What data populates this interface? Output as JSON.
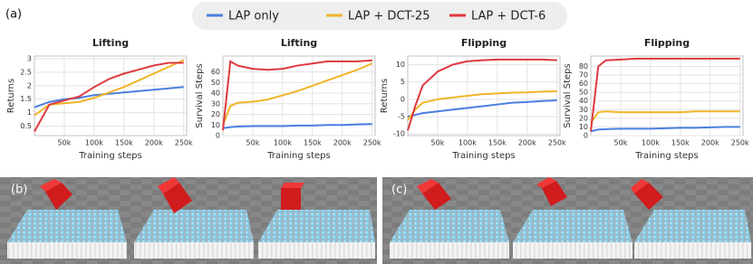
{
  "panel_labels": [
    "(a)",
    "(b)",
    "(c)"
  ],
  "legend": [
    {
      "name": "LAP only",
      "color": "#4a7fe0"
    },
    {
      "name": "LAP + DCT-25",
      "color": "#f0b429"
    },
    {
      "name": "LAP + DCT-6",
      "color": "#e0383e"
    }
  ],
  "chart_data": [
    {
      "type": "line",
      "title": "Lifting",
      "x_label": "Training steps",
      "y_label": "Returns",
      "x": [
        0,
        12500,
        25000,
        50000,
        75000,
        100000,
        125000,
        150000,
        175000,
        200000,
        225000,
        250000
      ],
      "series": [
        {
          "color": "#4a7fe0",
          "values": [
            1.2,
            1.3,
            1.4,
            1.5,
            1.55,
            1.65,
            1.7,
            1.75,
            1.8,
            1.85,
            1.9,
            1.95
          ]
        },
        {
          "color": "#f0b429",
          "values": [
            0.9,
            1.1,
            1.3,
            1.35,
            1.4,
            1.55,
            1.75,
            1.95,
            2.2,
            2.45,
            2.7,
            2.95
          ]
        },
        {
          "color": "#e0383e",
          "values": [
            0.3,
            0.8,
            1.3,
            1.45,
            1.6,
            1.95,
            2.25,
            2.45,
            2.6,
            2.75,
            2.85,
            2.85
          ]
        }
      ],
      "xlim": [
        0,
        255000
      ],
      "ylim": [
        0.15,
        3.1
      ],
      "xticks": [
        {
          "value": 50000,
          "label": "50k"
        },
        {
          "value": 100000,
          "label": "100k"
        },
        {
          "value": 150000,
          "label": "150k"
        },
        {
          "value": 200000,
          "label": "200k"
        },
        {
          "value": 250000,
          "label": "250k"
        }
      ],
      "yticks": [
        0.5,
        1,
        1.5,
        2,
        2.5,
        3
      ],
      "grid": true
    },
    {
      "type": "line",
      "title": "Lifting",
      "x_label": "Training steps",
      "y_label": "Survival Steps",
      "x": [
        0,
        12500,
        25000,
        50000,
        75000,
        100000,
        125000,
        150000,
        175000,
        200000,
        225000,
        250000
      ],
      "series": [
        {
          "color": "#4a7fe0",
          "values": [
            7,
            8,
            8.5,
            9,
            9,
            9,
            9.5,
            9.5,
            10,
            10,
            10.5,
            11
          ]
        },
        {
          "color": "#f0b429",
          "values": [
            10,
            28,
            31,
            32,
            34,
            38,
            42,
            47,
            52,
            57,
            62,
            68
          ]
        },
        {
          "color": "#e0383e",
          "values": [
            5,
            70,
            66,
            63,
            62,
            63,
            66,
            68,
            70,
            70,
            70,
            71
          ]
        }
      ],
      "xlim": [
        0,
        255000
      ],
      "ylim": [
        0,
        75
      ],
      "xticks": [
        {
          "value": 50000,
          "label": "50k"
        },
        {
          "value": 100000,
          "label": "100k"
        },
        {
          "value": 150000,
          "label": "150k"
        },
        {
          "value": 200000,
          "label": "200k"
        },
        {
          "value": 250000,
          "label": "250k"
        }
      ],
      "yticks": [
        0,
        10,
        20,
        30,
        40,
        50,
        60
      ],
      "grid": true
    },
    {
      "type": "line",
      "title": "Flipping",
      "x_label": "Training steps",
      "y_label": "Returns",
      "x": [
        0,
        12500,
        25000,
        50000,
        75000,
        100000,
        125000,
        150000,
        175000,
        200000,
        225000,
        250000
      ],
      "series": [
        {
          "color": "#4a7fe0",
          "values": [
            -5,
            -4.5,
            -4,
            -3.5,
            -3,
            -2.5,
            -2,
            -1.5,
            -1,
            -0.8,
            -0.5,
            -0.3
          ]
        },
        {
          "color": "#f0b429",
          "values": [
            -6,
            -3,
            -1,
            0,
            0.5,
            1,
            1.5,
            1.7,
            1.9,
            2,
            2.2,
            2.3
          ]
        },
        {
          "color": "#e0383e",
          "values": [
            -9,
            -2,
            4,
            8,
            10,
            11,
            11.3,
            11.5,
            11.5,
            11.5,
            11.5,
            11.3
          ]
        }
      ],
      "xlim": [
        0,
        255000
      ],
      "ylim": [
        -10.5,
        12.5
      ],
      "xticks": [
        {
          "value": 50000,
          "label": "50k"
        },
        {
          "value": 100000,
          "label": "100k"
        },
        {
          "value": 150000,
          "label": "150k"
        },
        {
          "value": 200000,
          "label": "200k"
        },
        {
          "value": 250000,
          "label": "250k"
        }
      ],
      "yticks": [
        -10,
        -5,
        0,
        5,
        10
      ],
      "grid": true
    },
    {
      "type": "line",
      "title": "Flipping",
      "x_label": "Training steps",
      "y_label": "Survival Steps",
      "x": [
        0,
        12500,
        25000,
        50000,
        75000,
        100000,
        125000,
        150000,
        175000,
        200000,
        225000,
        250000
      ],
      "series": [
        {
          "color": "#4a7fe0",
          "values": [
            5,
            7,
            7.5,
            8,
            8,
            8,
            8.5,
            9,
            9,
            9.5,
            10,
            10
          ]
        },
        {
          "color": "#f0b429",
          "values": [
            15,
            27,
            28,
            27,
            27,
            27,
            27,
            27,
            28,
            28,
            28,
            28
          ]
        },
        {
          "color": "#e0383e",
          "values": [
            5,
            80,
            87,
            88,
            89,
            89,
            89,
            89,
            89,
            89,
            89,
            89
          ]
        }
      ],
      "xlim": [
        0,
        255000
      ],
      "ylim": [
        0,
        92
      ],
      "xticks": [
        {
          "value": 50000,
          "label": "50k"
        },
        {
          "value": 100000,
          "label": "100k"
        },
        {
          "value": 150000,
          "label": "150k"
        },
        {
          "value": 200000,
          "label": "200k"
        },
        {
          "value": 250000,
          "label": "250k"
        }
      ],
      "yticks": [
        0,
        10,
        20,
        30,
        40,
        50,
        60,
        70,
        80
      ],
      "grid": true
    }
  ]
}
